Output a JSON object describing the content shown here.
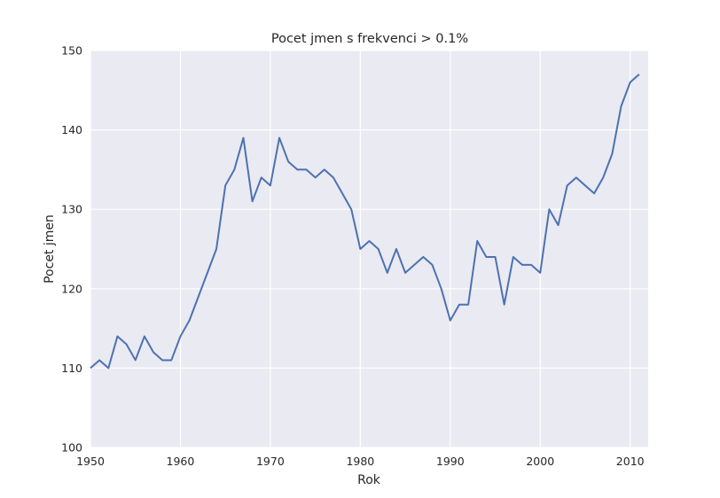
{
  "chart_data": {
    "type": "line",
    "title": "Pocet jmen s frekvenci > 0.1%",
    "xlabel": "Rok",
    "ylabel": "Pocet jmen",
    "xlim": [
      1950,
      2012
    ],
    "ylim": [
      100,
      150
    ],
    "xticks": [
      1950,
      1960,
      1970,
      1980,
      1990,
      2000,
      2010
    ],
    "yticks": [
      100,
      110,
      120,
      130,
      140,
      150
    ],
    "grid": true,
    "background": "#EAEAF2",
    "line_color": "#4C72B0",
    "series": [
      {
        "x": [
          1950,
          1951,
          1952,
          1953,
          1954,
          1955,
          1956,
          1957,
          1958,
          1959,
          1960,
          1961,
          1962,
          1963,
          1964,
          1965,
          1966,
          1967,
          1968,
          1969,
          1970,
          1971,
          1972,
          1973,
          1974,
          1975,
          1976,
          1977,
          1978,
          1979,
          1980,
          1981,
          1982,
          1983,
          1984,
          1985,
          1986,
          1987,
          1988,
          1989,
          1990,
          1991,
          1992,
          1993,
          1994,
          1995,
          1996,
          1997,
          1998,
          1999,
          2000,
          2001,
          2002,
          2003,
          2004,
          2005,
          2006,
          2007,
          2008,
          2009,
          2010,
          2011
        ],
        "y": [
          110,
          111,
          110,
          114,
          113,
          111,
          114,
          112,
          111,
          111,
          114,
          116,
          119,
          122,
          125,
          133,
          135,
          139,
          131,
          134,
          133,
          139,
          136,
          135,
          135,
          134,
          135,
          134,
          132,
          130,
          125,
          126,
          125,
          122,
          125,
          122,
          123,
          124,
          123,
          120,
          116,
          118,
          118,
          126,
          124,
          124,
          118,
          124,
          123,
          123,
          122,
          130,
          128,
          133,
          134,
          133,
          132,
          134,
          137,
          143,
          146,
          147
        ]
      }
    ]
  }
}
